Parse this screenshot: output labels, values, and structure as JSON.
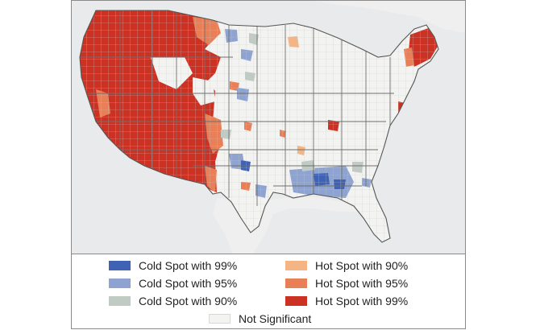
{
  "map": {
    "colors": {
      "ocean": "#e9eaeb",
      "land": "#f3f4f1",
      "county_lines": "#c9c9c9",
      "state_lines": "#6f6f6f",
      "cold_99": "#3f62b5",
      "cold_95": "#8ea3cf",
      "cold_90": "#bfcbc3",
      "hot_90": "#f5b483",
      "hot_95": "#e87f57",
      "hot_99": "#cc3224",
      "not_significant": "#f3f4f1"
    }
  },
  "legend": {
    "items": [
      {
        "label": "Cold Spot with 99%",
        "color": "#3f62b5"
      },
      {
        "label": "Cold Spot with 95%",
        "color": "#8ea3cf"
      },
      {
        "label": "Cold Spot with 90%",
        "color": "#bfcbc3"
      },
      {
        "label": "Hot Spot with 90%",
        "color": "#f5b483"
      },
      {
        "label": "Hot Spot with 95%",
        "color": "#e87f57"
      },
      {
        "label": "Hot Spot with 99%",
        "color": "#cc3224"
      },
      {
        "label": "Not Significant",
        "color": "#f3f4f1"
      }
    ]
  }
}
